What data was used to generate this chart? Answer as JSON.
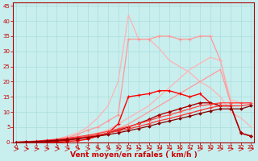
{
  "x": [
    0,
    1,
    2,
    3,
    4,
    5,
    6,
    7,
    8,
    9,
    10,
    11,
    12,
    13,
    14,
    15,
    16,
    17,
    18,
    19,
    20,
    21,
    22,
    23
  ],
  "series": [
    {
      "name": "light_pink_peak42_no_marker",
      "color": "#FFB3B3",
      "linewidth": 0.9,
      "marker": null,
      "markersize": 0,
      "values": [
        0,
        0,
        0,
        0.5,
        1,
        2,
        3,
        5,
        8,
        12,
        20,
        42,
        34,
        34,
        31,
        27,
        25,
        23,
        20,
        18,
        15,
        10,
        8,
        5
      ]
    },
    {
      "name": "medium_pink_with_markers_peak35",
      "color": "#FF9999",
      "linewidth": 0.9,
      "marker": "+",
      "markersize": 3.5,
      "markeredgewidth": 0.8,
      "values": [
        0,
        0,
        0,
        0.3,
        0.8,
        1.5,
        2.5,
        4,
        5,
        7,
        9,
        34,
        34,
        34,
        35,
        35,
        34,
        34,
        35,
        35,
        27,
        13,
        13,
        13
      ]
    },
    {
      "name": "light_pink_linear_top",
      "color": "#FFB3B3",
      "linewidth": 0.9,
      "marker": null,
      "markersize": 0,
      "values": [
        0,
        0,
        0,
        0,
        0.5,
        1,
        1.5,
        2,
        3,
        4,
        6,
        8,
        10,
        12,
        15,
        18,
        21,
        24,
        26,
        28,
        27,
        14,
        13,
        13
      ]
    },
    {
      "name": "salmon_linear_mid",
      "color": "#FF9999",
      "linewidth": 0.9,
      "marker": null,
      "markersize": 0,
      "values": [
        0,
        0,
        0,
        0,
        0.3,
        0.7,
        1,
        1.5,
        2,
        3,
        4.5,
        6,
        8,
        10,
        12,
        14,
        16,
        18,
        20,
        22,
        24,
        13,
        13,
        13
      ]
    },
    {
      "name": "bright_red_hump_markers",
      "color": "#FF0000",
      "linewidth": 1.0,
      "marker": "+",
      "markersize": 3.5,
      "markeredgewidth": 0.8,
      "values": [
        0,
        0,
        0,
        0,
        0,
        0.3,
        0.5,
        1,
        2,
        3,
        6,
        15,
        15.5,
        16,
        17,
        17,
        16,
        15,
        16,
        13,
        12,
        12,
        3,
        2
      ]
    },
    {
      "name": "dark_red_hump_diamond",
      "color": "#AA0000",
      "linewidth": 1.0,
      "marker": "D",
      "markersize": 2.0,
      "markeredgewidth": 0.5,
      "values": [
        0,
        0,
        0,
        0.2,
        0.4,
        0.7,
        1.1,
        1.6,
        2.2,
        3,
        4,
        5,
        6.2,
        7.5,
        9,
        10,
        11,
        12,
        13,
        13,
        12,
        12,
        3,
        2
      ]
    },
    {
      "name": "red_linear_upper",
      "color": "#FF4444",
      "linewidth": 0.9,
      "marker": "+",
      "markersize": 2.5,
      "markeredgewidth": 0.6,
      "values": [
        0,
        0.2,
        0.4,
        0.7,
        1.0,
        1.4,
        1.8,
        2.3,
        2.9,
        3.6,
        4.4,
        5.2,
        6.1,
        7.1,
        8.2,
        9.0,
        10,
        11,
        12,
        12.5,
        13,
        13,
        13,
        13
      ]
    },
    {
      "name": "red_linear_lower",
      "color": "#FF3333",
      "linewidth": 0.9,
      "marker": "+",
      "markersize": 2.5,
      "markeredgewidth": 0.6,
      "values": [
        0,
        0.15,
        0.3,
        0.55,
        0.8,
        1.1,
        1.5,
        1.9,
        2.4,
        3,
        3.7,
        4.4,
        5.2,
        6.1,
        7.1,
        7.8,
        8.7,
        9.6,
        10.5,
        11.4,
        12,
        12,
        12,
        12.5
      ]
    },
    {
      "name": "dark_red_linear_diamond",
      "color": "#880000",
      "linewidth": 0.9,
      "marker": "D",
      "markersize": 1.8,
      "markeredgewidth": 0.5,
      "values": [
        0,
        0.1,
        0.25,
        0.45,
        0.65,
        0.9,
        1.2,
        1.6,
        2.0,
        2.5,
        3.1,
        3.8,
        4.5,
        5.3,
        6.2,
        7,
        7.8,
        8.6,
        9.5,
        10.3,
        11,
        11,
        11,
        12
      ]
    }
  ],
  "xlim": [
    -0.3,
    23.3
  ],
  "ylim": [
    0,
    46
  ],
  "yticks": [
    0,
    5,
    10,
    15,
    20,
    25,
    30,
    35,
    40,
    45
  ],
  "xticks": [
    0,
    1,
    2,
    3,
    4,
    5,
    6,
    7,
    8,
    9,
    10,
    11,
    12,
    13,
    14,
    15,
    16,
    17,
    18,
    19,
    20,
    21,
    22,
    23
  ],
  "xlabel": "Vent moyen/en rafales ( km/h )",
  "bg_color": "#C8EEEE",
  "grid_color": "#AADDDD",
  "spine_color": "#AA0000",
  "xlabel_color": "#CC0000",
  "tick_color": "#CC0000",
  "xlabel_fontsize": 6.5,
  "tick_fontsize": 5.0
}
